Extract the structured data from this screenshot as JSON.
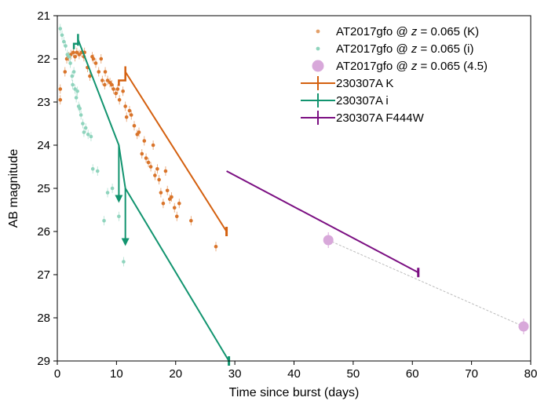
{
  "chart_data": {
    "type": "scatter",
    "xlabel": "Time since burst (days)",
    "ylabel": "AB magnitude",
    "xlim": [
      0,
      80
    ],
    "ylim": [
      29,
      21
    ],
    "y_inverted": true,
    "grid": false,
    "legend_position": "top-right",
    "xticks": [
      "0",
      "10",
      "20",
      "30",
      "40",
      "50",
      "60",
      "70",
      "80"
    ],
    "yticks": [
      "21",
      "22",
      "23",
      "24",
      "25",
      "26",
      "27",
      "28",
      "29"
    ],
    "legend": [
      {
        "kind": "dot",
        "prefix": "AT2017gfo @ ",
        "italic": "z",
        "suffix": " = 0.065 (K)",
        "color": "#e3a06a"
      },
      {
        "kind": "dot",
        "prefix": "AT2017gfo @ ",
        "italic": "z",
        "suffix": " = 0.065 (i)",
        "color": "#8fd4bd"
      },
      {
        "kind": "bigdot",
        "prefix": "AT2017gfo @ ",
        "italic": "z",
        "suffix": " = 0.065 (4.5)",
        "color": "#d8a8da"
      },
      {
        "kind": "line",
        "prefix": "230307A K",
        "italic": "",
        "suffix": "",
        "color": "#d4600f"
      },
      {
        "kind": "line",
        "prefix": "230307A i",
        "italic": "",
        "suffix": "",
        "color": "#12946f"
      },
      {
        "kind": "line",
        "prefix": "230307A F444W",
        "italic": "",
        "suffix": "",
        "color": "#7b0f82"
      }
    ],
    "series": [
      {
        "id": "at2017gfo-K",
        "color": "#d9742a",
        "marker": "dot",
        "points": [
          [
            0.5,
            22.7
          ],
          [
            0.5,
            22.95
          ],
          [
            1.3,
            22.3
          ],
          [
            1.6,
            22.0
          ],
          [
            1.9,
            21.95
          ],
          [
            2.3,
            21.9
          ],
          [
            2.7,
            21.85
          ],
          [
            3.0,
            21.95
          ],
          [
            3.3,
            21.85
          ],
          [
            3.7,
            21.9
          ],
          [
            4.1,
            21.85
          ],
          [
            4.5,
            21.95
          ],
          [
            4.6,
            21.85
          ],
          [
            5.1,
            22.2
          ],
          [
            5.5,
            22.4
          ],
          [
            5.9,
            21.95
          ],
          [
            6.1,
            22.0
          ],
          [
            6.5,
            22.1
          ],
          [
            7.0,
            22.3
          ],
          [
            7.4,
            22.0
          ],
          [
            7.6,
            22.5
          ],
          [
            8.0,
            22.6
          ],
          [
            8.1,
            22.3
          ],
          [
            8.5,
            22.5
          ],
          [
            8.9,
            22.55
          ],
          [
            9.2,
            22.6
          ],
          [
            9.5,
            22.7
          ],
          [
            9.9,
            22.8
          ],
          [
            10.2,
            22.7
          ],
          [
            10.5,
            22.95
          ],
          [
            11.1,
            22.75
          ],
          [
            11.5,
            23.1
          ],
          [
            11.7,
            23.35
          ],
          [
            12.2,
            23.2
          ],
          [
            12.5,
            23.3
          ],
          [
            13.0,
            23.55
          ],
          [
            13.5,
            23.75
          ],
          [
            13.8,
            23.7
          ],
          [
            14.3,
            24.2
          ],
          [
            14.7,
            23.9
          ],
          [
            15.0,
            24.3
          ],
          [
            15.4,
            24.4
          ],
          [
            15.8,
            24.5
          ],
          [
            16.2,
            24.0
          ],
          [
            16.5,
            24.7
          ],
          [
            16.9,
            24.55
          ],
          [
            17.2,
            24.8
          ],
          [
            17.5,
            25.1
          ],
          [
            17.9,
            25.35
          ],
          [
            18.3,
            24.6
          ],
          [
            18.6,
            25.05
          ],
          [
            19.0,
            25.25
          ],
          [
            19.3,
            25.2
          ],
          [
            19.8,
            25.45
          ],
          [
            20.2,
            25.65
          ],
          [
            20.6,
            25.35
          ],
          [
            22.6,
            25.75
          ],
          [
            26.8,
            26.35
          ]
        ]
      },
      {
        "id": "at2017gfo-i",
        "color": "#8fd4bd",
        "marker": "dot",
        "points": [
          [
            0.5,
            21.3
          ],
          [
            0.8,
            21.45
          ],
          [
            1.1,
            21.6
          ],
          [
            1.4,
            21.7
          ],
          [
            1.7,
            21.9
          ],
          [
            2.0,
            21.95
          ],
          [
            2.2,
            22.1
          ],
          [
            2.5,
            22.4
          ],
          [
            2.6,
            22.6
          ],
          [
            2.8,
            22.3
          ],
          [
            3.0,
            22.7
          ],
          [
            3.2,
            22.9
          ],
          [
            3.4,
            22.75
          ],
          [
            3.6,
            23.1
          ],
          [
            3.8,
            23.15
          ],
          [
            4.0,
            23.3
          ],
          [
            4.3,
            23.5
          ],
          [
            4.5,
            23.7
          ],
          [
            4.8,
            23.6
          ],
          [
            5.2,
            23.75
          ],
          [
            5.7,
            23.8
          ],
          [
            6.0,
            24.55
          ],
          [
            6.8,
            24.6
          ],
          [
            7.9,
            25.75
          ],
          [
            8.5,
            25.1
          ],
          [
            9.3,
            25.0
          ],
          [
            10.4,
            25.65
          ],
          [
            11.2,
            26.7
          ]
        ]
      },
      {
        "id": "at2017gfo-45",
        "color": "#d8a8da",
        "marker": "bigdot",
        "points": [
          [
            45.8,
            26.2
          ],
          [
            78.8,
            28.2
          ]
        ]
      }
    ],
    "connector": {
      "from": [
        45.8,
        26.2
      ],
      "to": [
        78.8,
        28.2
      ],
      "color": "#bbbbbb"
    },
    "lines": [
      {
        "id": "230307A-K",
        "color": "#d4600f",
        "points": [
          [
            11.5,
            22.3
          ],
          [
            28.6,
            26.0
          ]
        ],
        "bracket": {
          "x": 10.4,
          "y": 22.5
        }
      },
      {
        "id": "230307A-i",
        "color": "#12946f",
        "points": [
          [
            3.5,
            21.55
          ],
          [
            10.4,
            24.0
          ],
          [
            11.5,
            25.0
          ],
          [
            29.0,
            29.0
          ]
        ],
        "bracket": {
          "x": 2.8,
          "y": 21.65
        }
      },
      {
        "id": "230307A-F444W",
        "color": "#7b0f82",
        "points": [
          [
            28.6,
            24.6
          ],
          [
            61.0,
            26.95
          ]
        ]
      }
    ],
    "upper_limit_arrows": [
      {
        "color": "#12946f",
        "x": 10.4,
        "from": 24.0,
        "to": 25.3
      },
      {
        "color": "#12946f",
        "x": 11.5,
        "from": 25.0,
        "to": 26.3
      }
    ]
  }
}
